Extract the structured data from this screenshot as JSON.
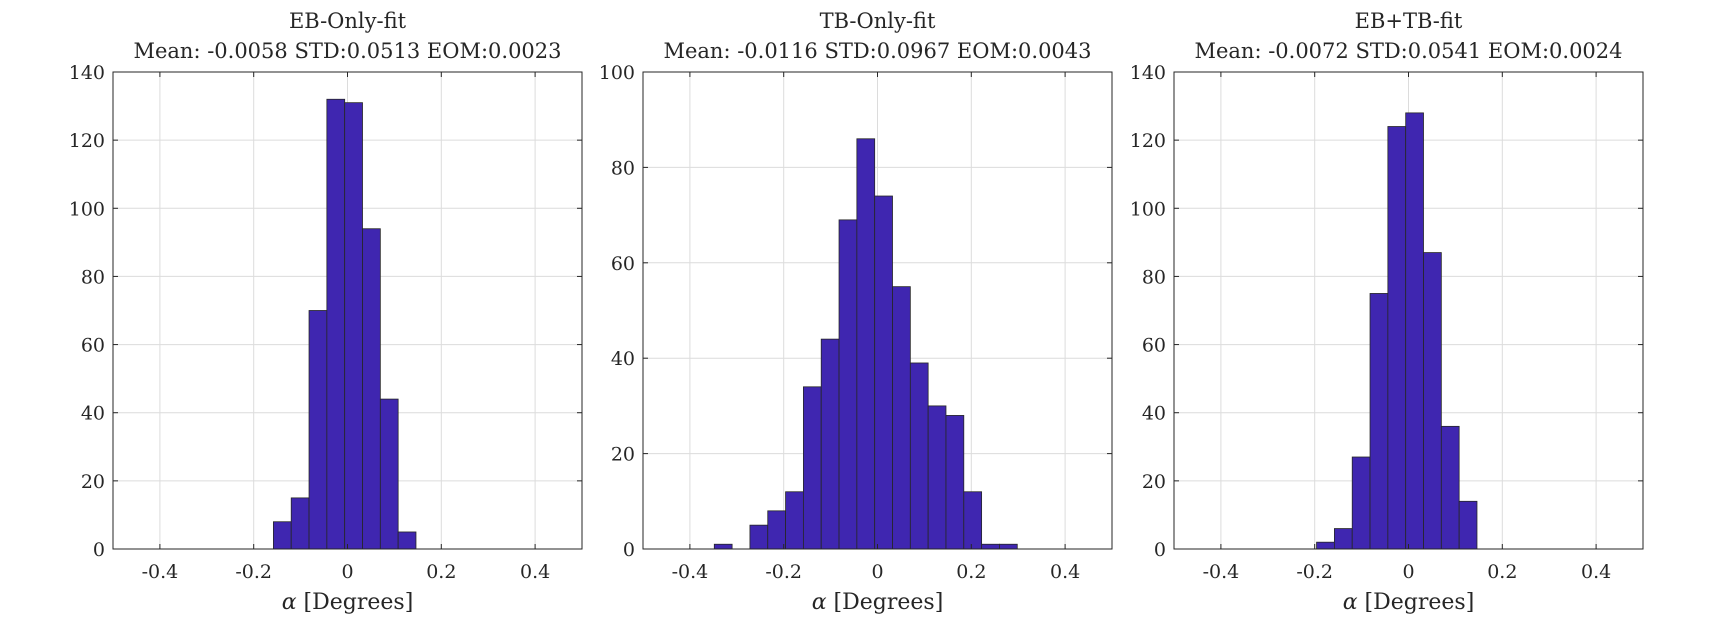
{
  "colors": {
    "bar": "#3f26b0",
    "edge": "#262626",
    "grid": "#dcdcdc"
  },
  "chart_data": [
    {
      "type": "bar",
      "title": "EB-Only-fit",
      "subtitle": "Mean: -0.0058 STD:0.0513 EOM:0.0023",
      "xlabel_symbol": "α",
      "xlabel": "[Degrees]",
      "xlim": [
        -0.5,
        0.5
      ],
      "ylim": [
        0,
        140
      ],
      "xticks": [
        -0.4,
        -0.2,
        0,
        0.2,
        0.4
      ],
      "xtick_labels": [
        "-0.4",
        "-0.2",
        "0",
        "0.2",
        "0.4"
      ],
      "yticks": [
        0,
        20,
        40,
        60,
        80,
        100,
        120,
        140
      ],
      "ytick_labels": [
        "0",
        "20",
        "40",
        "60",
        "80",
        "100",
        "120",
        "140"
      ],
      "grid": true,
      "bin_edges": [
        -0.5,
        -0.462,
        -0.424,
        -0.386,
        -0.348,
        -0.31,
        -0.272,
        -0.234,
        -0.196,
        -0.158,
        -0.12,
        -0.082,
        -0.044,
        -0.006,
        0.032,
        0.07,
        0.108,
        0.146,
        0.184,
        0.222,
        0.26,
        0.298,
        0.336,
        0.374,
        0.412,
        0.45,
        0.488,
        0.5
      ],
      "counts": [
        0,
        0,
        0,
        0,
        0,
        0,
        0,
        0,
        0,
        8,
        15,
        70,
        132,
        131,
        94,
        44,
        5,
        0,
        0,
        0,
        0,
        0,
        0,
        0,
        0,
        0,
        0
      ]
    },
    {
      "type": "bar",
      "title": "TB-Only-fit",
      "subtitle": "Mean: -0.0116 STD:0.0967 EOM:0.0043",
      "xlabel_symbol": "α",
      "xlabel": "[Degrees]",
      "xlim": [
        -0.5,
        0.5
      ],
      "ylim": [
        0,
        100
      ],
      "xticks": [
        -0.4,
        -0.2,
        0,
        0.2,
        0.4
      ],
      "xtick_labels": [
        "-0.4",
        "-0.2",
        "0",
        "0.2",
        "0.4"
      ],
      "yticks": [
        0,
        20,
        40,
        60,
        80,
        100
      ],
      "ytick_labels": [
        "0",
        "20",
        "40",
        "60",
        "80",
        "100"
      ],
      "grid": true,
      "bin_edges": [
        -0.5,
        -0.462,
        -0.424,
        -0.386,
        -0.348,
        -0.31,
        -0.272,
        -0.234,
        -0.196,
        -0.158,
        -0.12,
        -0.082,
        -0.044,
        -0.006,
        0.032,
        0.07,
        0.108,
        0.146,
        0.184,
        0.222,
        0.26,
        0.298,
        0.336,
        0.374,
        0.412,
        0.45,
        0.488,
        0.5
      ],
      "counts": [
        0,
        0,
        0,
        0,
        1,
        0,
        5,
        8,
        12,
        34,
        44,
        69,
        86,
        74,
        55,
        39,
        30,
        28,
        12,
        1,
        1,
        0,
        0,
        0,
        0,
        0,
        0
      ]
    },
    {
      "type": "bar",
      "title": "EB+TB-fit",
      "subtitle": "Mean: -0.0072 STD:0.0541 EOM:0.0024",
      "xlabel_symbol": "α",
      "xlabel": "[Degrees]",
      "xlim": [
        -0.5,
        0.5
      ],
      "ylim": [
        0,
        140
      ],
      "xticks": [
        -0.4,
        -0.2,
        0,
        0.2,
        0.4
      ],
      "xtick_labels": [
        "-0.4",
        "-0.2",
        "0",
        "0.2",
        "0.4"
      ],
      "yticks": [
        0,
        20,
        40,
        60,
        80,
        100,
        120,
        140
      ],
      "ytick_labels": [
        "0",
        "20",
        "40",
        "60",
        "80",
        "100",
        "120",
        "140"
      ],
      "grid": true,
      "bin_edges": [
        -0.5,
        -0.462,
        -0.424,
        -0.386,
        -0.348,
        -0.31,
        -0.272,
        -0.234,
        -0.196,
        -0.158,
        -0.12,
        -0.082,
        -0.044,
        -0.006,
        0.032,
        0.07,
        0.108,
        0.146,
        0.184,
        0.222,
        0.26,
        0.298,
        0.336,
        0.374,
        0.412,
        0.45,
        0.488,
        0.5
      ],
      "counts": [
        0,
        0,
        0,
        0,
        0,
        0,
        0,
        0,
        2,
        6,
        27,
        75,
        124,
        128,
        87,
        36,
        14,
        0,
        0,
        0,
        0,
        0,
        0,
        0,
        0,
        0,
        0
      ]
    }
  ]
}
